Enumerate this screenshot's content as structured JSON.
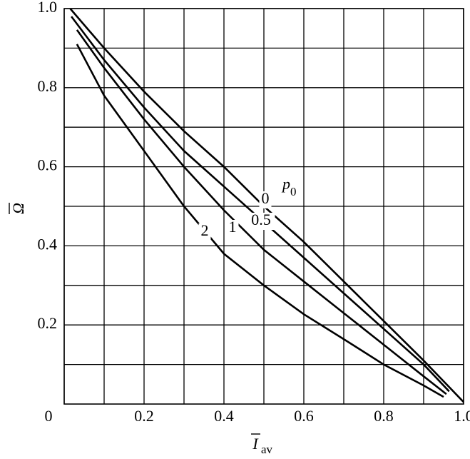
{
  "chart_data": {
    "type": "line",
    "xlabel": "I",
    "xlabel_sub": "av",
    "ylabel": "Ω",
    "legend_title": "p",
    "legend_title_sub": "0",
    "xlim": [
      0,
      1
    ],
    "ylim": [
      0,
      1
    ],
    "xticks": [
      0,
      0.2,
      0.4,
      0.6,
      0.8,
      {
        "value": 1,
        "label": "1.0"
      }
    ],
    "yticks": [
      0.2,
      0.4,
      0.6,
      0.8,
      {
        "value": 1,
        "label": "1.0"
      }
    ],
    "xminor": [
      0.1,
      0.3,
      0.5,
      0.7,
      0.9
    ],
    "yminor": [
      0.1,
      0.3,
      0.5,
      0.7,
      0.9
    ],
    "grid": true,
    "series": [
      {
        "name": "0",
        "color": "#000000",
        "x": [
          0.015,
          0.1,
          0.2,
          0.3,
          0.4,
          0.5,
          0.6,
          0.7,
          0.8,
          0.9,
          1.0
        ],
        "values": [
          1.0,
          0.9,
          0.79,
          0.69,
          0.6,
          0.5,
          0.41,
          0.31,
          0.21,
          0.11,
          0.005
        ]
      },
      {
        "name": "0.5",
        "color": "#000000",
        "x": [
          0.018,
          0.1,
          0.2,
          0.3,
          0.4,
          0.5,
          0.6,
          0.7,
          0.8,
          0.9,
          0.964
        ],
        "values": [
          0.98,
          0.87,
          0.75,
          0.64,
          0.55,
          0.46,
          0.37,
          0.28,
          0.19,
          0.1,
          0.032
        ]
      },
      {
        "name": "1",
        "color": "#000000",
        "x": [
          0.032,
          0.1,
          0.2,
          0.3,
          0.4,
          0.5,
          0.6,
          0.7,
          0.8,
          0.9,
          0.957
        ],
        "values": [
          0.946,
          0.85,
          0.72,
          0.6,
          0.49,
          0.39,
          0.31,
          0.23,
          0.15,
          0.07,
          0.025
        ]
      },
      {
        "name": "2",
        "color": "#000000",
        "x": [
          0.032,
          0.1,
          0.2,
          0.3,
          0.4,
          0.5,
          0.6,
          0.7,
          0.8,
          0.9,
          0.95
        ],
        "values": [
          0.91,
          0.78,
          0.64,
          0.5,
          0.38,
          0.3,
          0.227,
          0.164,
          0.1,
          0.047,
          0.018
        ]
      }
    ]
  }
}
